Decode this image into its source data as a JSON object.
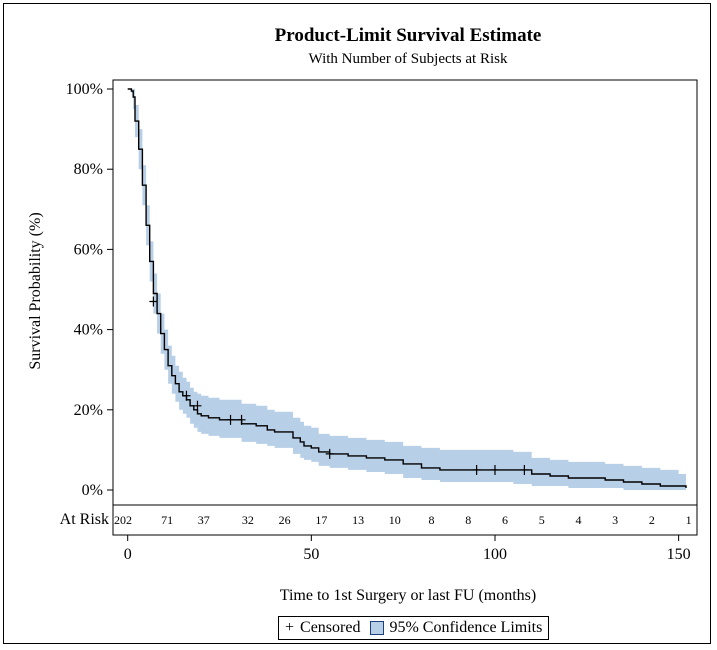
{
  "chart_data": {
    "type": "line",
    "title": "Product-Limit Survival Estimate",
    "subtitle": "With Number of Subjects at Risk",
    "xlabel": "Time to 1st Surgery or last FU (months)",
    "ylabel": "Survival Probability (%)",
    "xlim": [
      -4,
      155
    ],
    "ylim": [
      0,
      100
    ],
    "x_ticks": [
      0,
      50,
      100,
      150
    ],
    "y_ticks": [
      0,
      20,
      40,
      60,
      80,
      100
    ],
    "y_tick_suffix": "%",
    "grid": false,
    "legend_position": "bottom-center",
    "colors": {
      "line": "#000000",
      "band": "#b8cfe8",
      "band_edge": "#1f3f7a"
    },
    "series": [
      {
        "name": "Survival estimate",
        "points": [
          [
            0,
            100
          ],
          [
            1,
            99.5
          ],
          [
            1.5,
            98
          ],
          [
            2,
            92
          ],
          [
            3,
            85
          ],
          [
            4,
            76
          ],
          [
            5,
            66
          ],
          [
            6,
            57
          ],
          [
            7,
            49
          ],
          [
            8,
            44
          ],
          [
            9,
            39
          ],
          [
            10,
            35
          ],
          [
            11,
            31
          ],
          [
            12,
            28.5
          ],
          [
            13,
            26.5
          ],
          [
            14,
            24.5
          ],
          [
            15,
            23.5
          ],
          [
            16,
            22.5
          ],
          [
            17,
            21
          ],
          [
            18,
            20
          ],
          [
            19,
            19
          ],
          [
            20,
            18.5
          ],
          [
            22,
            18
          ],
          [
            25,
            17.5
          ],
          [
            30,
            17.5
          ],
          [
            31,
            16.5
          ],
          [
            35,
            16
          ],
          [
            38,
            15
          ],
          [
            40,
            14.5
          ],
          [
            45,
            13
          ],
          [
            47,
            12
          ],
          [
            48,
            11
          ],
          [
            50,
            10.5
          ],
          [
            52,
            9.5
          ],
          [
            55,
            9
          ],
          [
            60,
            8.5
          ],
          [
            65,
            8
          ],
          [
            70,
            7.5
          ],
          [
            75,
            6.5
          ],
          [
            80,
            5.5
          ],
          [
            85,
            5
          ],
          [
            90,
            5
          ],
          [
            95,
            5
          ],
          [
            100,
            5
          ],
          [
            105,
            5
          ],
          [
            110,
            4
          ],
          [
            115,
            3.5
          ],
          [
            120,
            3
          ],
          [
            130,
            2.5
          ],
          [
            135,
            2
          ],
          [
            140,
            1.5
          ],
          [
            145,
            1
          ],
          [
            150,
            1
          ],
          [
            152,
            0.5
          ]
        ],
        "lower": [
          [
            0,
            100
          ],
          [
            1,
            99
          ],
          [
            1.5,
            95
          ],
          [
            2,
            88
          ],
          [
            3,
            80
          ],
          [
            4,
            71
          ],
          [
            5,
            61
          ],
          [
            6,
            52
          ],
          [
            7,
            44
          ],
          [
            8,
            39
          ],
          [
            9,
            34
          ],
          [
            10,
            30
          ],
          [
            11,
            26.5
          ],
          [
            12,
            24
          ],
          [
            13,
            22
          ],
          [
            14,
            20
          ],
          [
            15,
            19
          ],
          [
            16,
            18
          ],
          [
            17,
            16.5
          ],
          [
            18,
            15.5
          ],
          [
            19,
            14.5
          ],
          [
            20,
            14
          ],
          [
            22,
            13.5
          ],
          [
            25,
            13
          ],
          [
            30,
            13
          ],
          [
            31,
            12
          ],
          [
            35,
            11.5
          ],
          [
            38,
            11
          ],
          [
            40,
            10.5
          ],
          [
            45,
            9
          ],
          [
            47,
            8
          ],
          [
            48,
            7.5
          ],
          [
            50,
            7
          ],
          [
            52,
            6
          ],
          [
            55,
            5.5
          ],
          [
            60,
            5
          ],
          [
            65,
            4.5
          ],
          [
            70,
            4
          ],
          [
            75,
            3
          ],
          [
            80,
            2.5
          ],
          [
            85,
            2
          ],
          [
            90,
            2
          ],
          [
            95,
            2
          ],
          [
            100,
            2
          ],
          [
            105,
            1.5
          ],
          [
            110,
            1
          ],
          [
            115,
            1
          ],
          [
            120,
            0.5
          ],
          [
            130,
            0.5
          ],
          [
            135,
            0
          ],
          [
            140,
            0
          ],
          [
            145,
            0
          ],
          [
            150,
            0
          ],
          [
            152,
            0
          ]
        ],
        "upper": [
          [
            0,
            100
          ],
          [
            1,
            100
          ],
          [
            1.5,
            100
          ],
          [
            2,
            96
          ],
          [
            3,
            90
          ],
          [
            4,
            81
          ],
          [
            5,
            71
          ],
          [
            6,
            62
          ],
          [
            7,
            54
          ],
          [
            8,
            49
          ],
          [
            9,
            44
          ],
          [
            10,
            40
          ],
          [
            11,
            36
          ],
          [
            12,
            33.5
          ],
          [
            13,
            31
          ],
          [
            14,
            29.5
          ],
          [
            15,
            28
          ],
          [
            16,
            27
          ],
          [
            17,
            25.5
          ],
          [
            18,
            24.5
          ],
          [
            19,
            24
          ],
          [
            20,
            23.5
          ],
          [
            22,
            23
          ],
          [
            25,
            22.5
          ],
          [
            30,
            22.5
          ],
          [
            31,
            21.5
          ],
          [
            35,
            21
          ],
          [
            38,
            20
          ],
          [
            40,
            19.5
          ],
          [
            45,
            18
          ],
          [
            47,
            17
          ],
          [
            48,
            16
          ],
          [
            50,
            15.5
          ],
          [
            52,
            14
          ],
          [
            55,
            13.5
          ],
          [
            60,
            13
          ],
          [
            65,
            12.5
          ],
          [
            70,
            12
          ],
          [
            75,
            11
          ],
          [
            80,
            10.5
          ],
          [
            85,
            10
          ],
          [
            90,
            10
          ],
          [
            95,
            10
          ],
          [
            100,
            10
          ],
          [
            105,
            9.5
          ],
          [
            110,
            8
          ],
          [
            115,
            7.5
          ],
          [
            120,
            7
          ],
          [
            130,
            6.5
          ],
          [
            135,
            6
          ],
          [
            140,
            5.5
          ],
          [
            145,
            5
          ],
          [
            150,
            4
          ],
          [
            152,
            4
          ]
        ],
        "censored": [
          [
            7,
            47
          ],
          [
            16,
            23.5
          ],
          [
            19,
            21
          ],
          [
            28,
            17.5
          ],
          [
            31,
            17.5
          ],
          [
            55,
            9
          ],
          [
            95,
            5
          ],
          [
            100,
            5
          ],
          [
            108,
            5
          ]
        ]
      }
    ],
    "at_risk": {
      "label": "At Risk",
      "times": [
        -4,
        8,
        18,
        30,
        40,
        50,
        60,
        70,
        80,
        90,
        100,
        110,
        120,
        130,
        140,
        150
      ],
      "counts": [
        "202",
        "71",
        "37",
        "32",
        "26",
        "17",
        "13",
        "10",
        "8",
        "8",
        "6",
        "5",
        "4",
        "3",
        "2",
        "1"
      ]
    }
  },
  "legend": {
    "censored_symbol": "+",
    "censored_label": "Censored",
    "band_label": "95% Confidence Limits"
  }
}
